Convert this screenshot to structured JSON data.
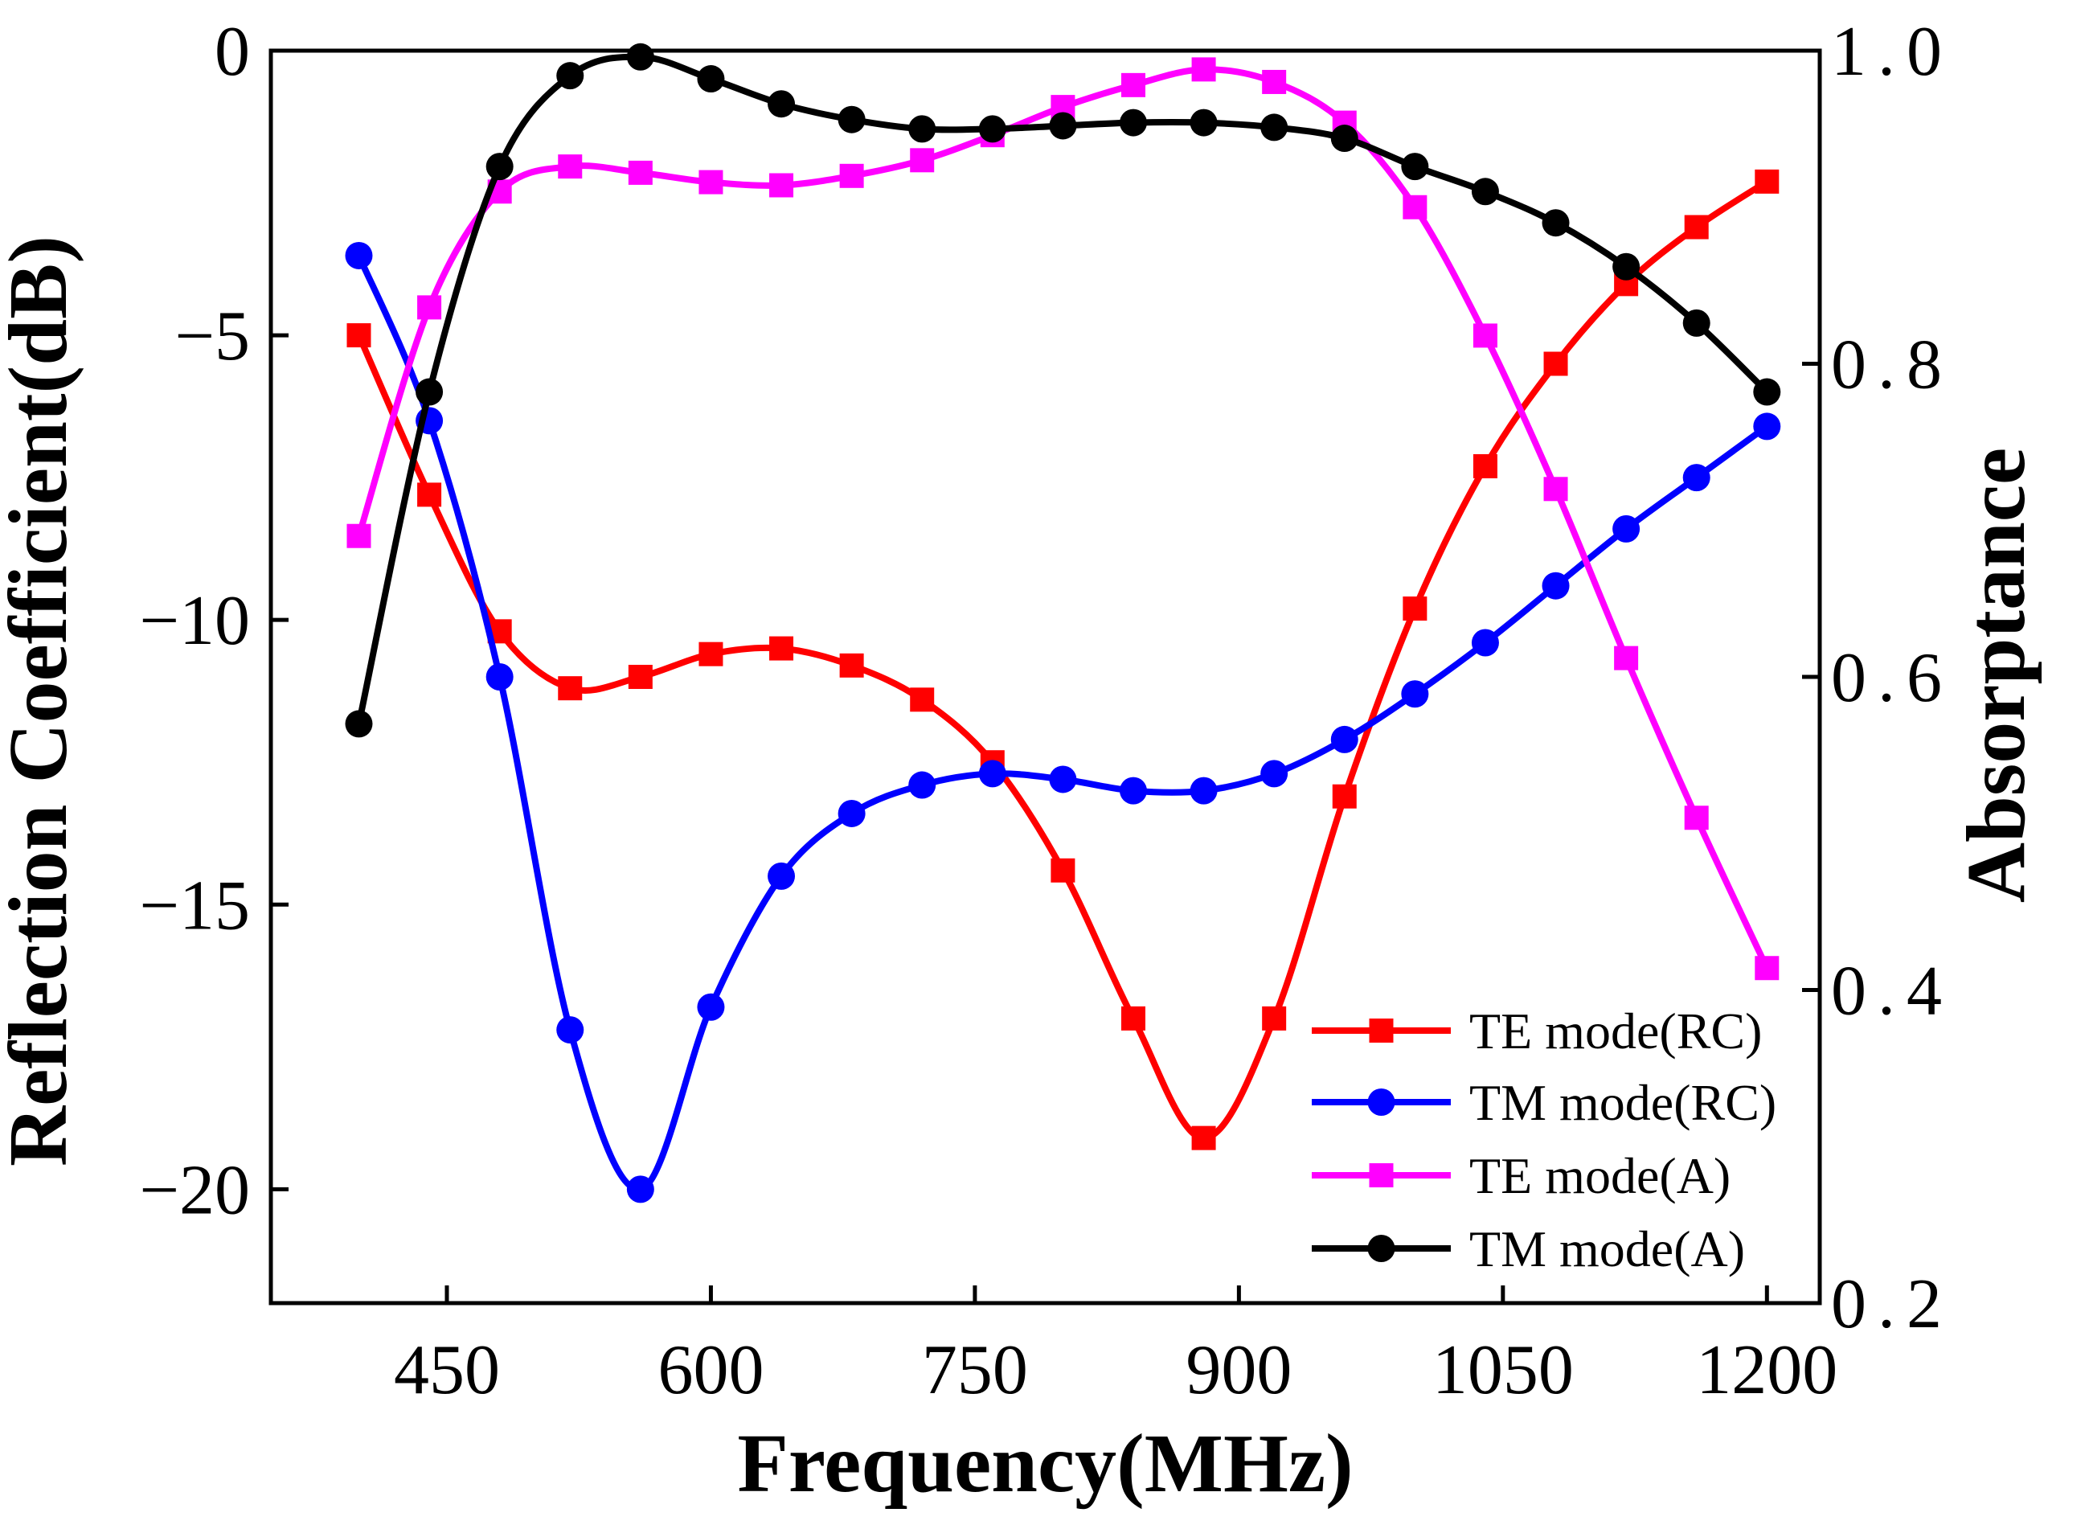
{
  "chart_data": {
    "type": "line",
    "xlabel": "Frequency(MHz)",
    "ylabel": "Reflection Coefficient(dB)",
    "y2label": "Absorptance",
    "xlim": [
      350,
      1230
    ],
    "ylim": [
      -22,
      0
    ],
    "y2lim": [
      0.2,
      1.0
    ],
    "xticks": [
      450,
      600,
      750,
      900,
      1050,
      1200
    ],
    "yticks": [
      0,
      -5,
      -10,
      -15,
      -20
    ],
    "y2ticks": [
      1.0,
      0.8,
      0.6,
      0.4,
      0.2
    ],
    "x_tick_labels": [
      "450",
      "600",
      "750",
      "900",
      "1050",
      "1200"
    ],
    "y_tick_labels": [
      "0",
      "−5",
      "−10",
      "−15",
      "−20"
    ],
    "y2_tick_labels": [
      "1.0",
      "0.8",
      "0.6",
      "0.4",
      "0.2"
    ],
    "legend_position": "bottom-right",
    "grid": false,
    "x": [
      400,
      440,
      480,
      520,
      560,
      600,
      640,
      680,
      720,
      760,
      800,
      840,
      880,
      920,
      960,
      1000,
      1040,
      1080,
      1120,
      1160,
      1200
    ],
    "series": [
      {
        "name": "TE mode(RC)",
        "axis": "left",
        "color": "#ff0000",
        "marker": "square",
        "values": [
          -5.0,
          -7.8,
          -10.2,
          -11.2,
          -11.0,
          -10.6,
          -10.5,
          -10.8,
          -11.4,
          -12.5,
          -14.4,
          -17.0,
          -19.1,
          -17.0,
          -13.1,
          -9.8,
          -7.3,
          -5.5,
          -4.1,
          -3.1,
          -2.3
        ]
      },
      {
        "name": "TM mode(RC)",
        "axis": "left",
        "color": "#0000ff",
        "marker": "circle",
        "values": [
          -3.6,
          -6.5,
          -11.0,
          -17.2,
          -20.0,
          -16.8,
          -14.5,
          -13.4,
          -12.9,
          -12.7,
          -12.8,
          -13.0,
          -13.0,
          -12.7,
          -12.1,
          -11.3,
          -10.4,
          -9.4,
          -8.4,
          -7.5,
          -6.6
        ]
      },
      {
        "name": "TE mode(A)",
        "axis": "right",
        "color": "#ff00ff",
        "marker": "square",
        "values": [
          0.69,
          0.836,
          0.91,
          0.926,
          0.922,
          0.916,
          0.914,
          0.92,
          0.93,
          0.946,
          0.964,
          0.978,
          0.988,
          0.98,
          0.954,
          0.9,
          0.818,
          0.72,
          0.612,
          0.51,
          0.414
        ]
      },
      {
        "name": "TM mode(A)",
        "axis": "right",
        "color": "#000000",
        "marker": "circle",
        "values": [
          0.57,
          0.782,
          0.926,
          0.984,
          0.996,
          0.982,
          0.966,
          0.956,
          0.95,
          0.95,
          0.952,
          0.954,
          0.954,
          0.951,
          0.944,
          0.926,
          0.91,
          0.89,
          0.862,
          0.826,
          0.782
        ]
      }
    ]
  }
}
